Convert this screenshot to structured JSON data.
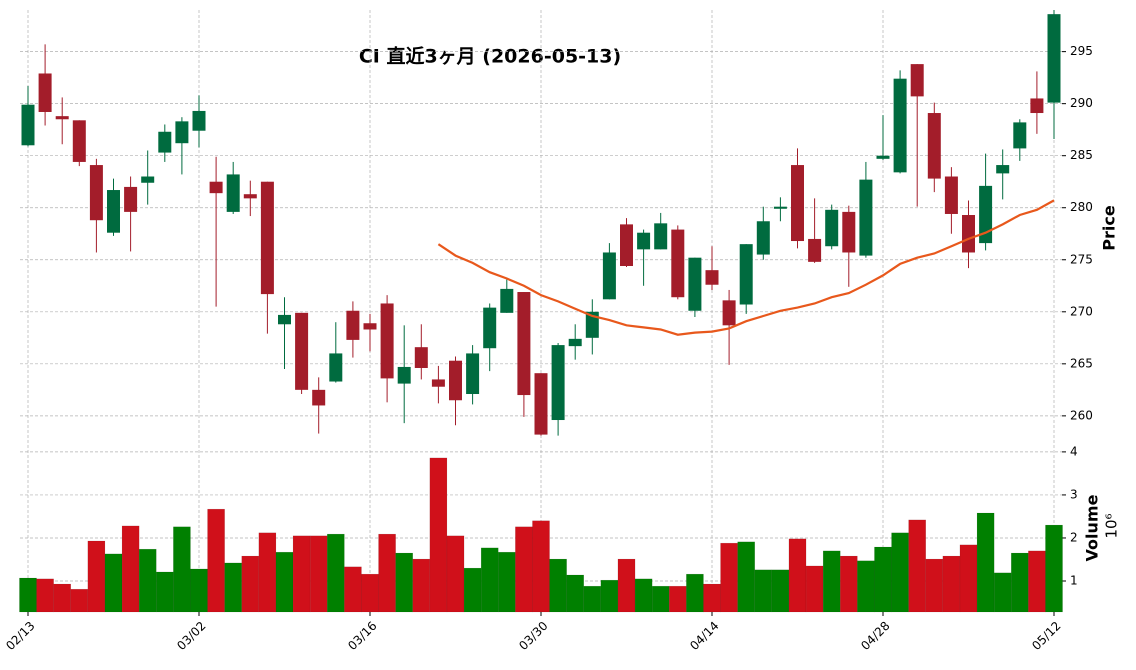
{
  "chart_data": {
    "type": "candlestick",
    "title": "CI  直近3ヶ月  (2026-05-13)",
    "categories": [
      "02/13",
      null,
      null,
      null,
      null,
      null,
      null,
      null,
      null,
      null,
      "03/02",
      null,
      null,
      null,
      null,
      null,
      null,
      null,
      null,
      null,
      "03/16",
      null,
      null,
      null,
      null,
      null,
      null,
      null,
      null,
      null,
      "03/30",
      null,
      null,
      null,
      null,
      null,
      null,
      null,
      null,
      null,
      "04/14",
      null,
      null,
      null,
      null,
      null,
      null,
      null,
      null,
      null,
      "04/28",
      null,
      null,
      null,
      null,
      null,
      null,
      null,
      null,
      null,
      "05/12"
    ],
    "open": [
      286.0,
      292.9,
      288.8,
      288.4,
      284.1,
      277.6,
      282.0,
      282.4,
      285.3,
      286.2,
      287.4,
      282.5,
      279.6,
      281.3,
      282.5,
      268.8,
      269.9,
      262.5,
      263.3,
      270.1,
      268.9,
      270.8,
      263.1,
      266.6,
      263.5,
      265.3,
      262.1,
      266.5,
      269.9,
      271.9,
      264.1,
      259.6,
      266.7,
      267.5,
      271.2,
      278.4,
      276.0,
      276.0,
      277.9,
      270.1,
      274.0,
      271.1,
      270.7,
      275.5,
      279.9,
      284.1,
      277.0,
      276.3,
      279.6,
      275.4,
      284.7,
      283.4,
      293.8,
      289.1,
      283.0,
      279.3,
      276.6,
      283.3,
      285.7,
      290.5,
      290.1
    ],
    "high": [
      291.7,
      295.7,
      290.6,
      288.4,
      284.7,
      282.8,
      283.0,
      285.5,
      288.0,
      288.7,
      290.8,
      284.9,
      284.4,
      282.6,
      282.5,
      271.4,
      269.9,
      263.7,
      269.0,
      271.0,
      269.8,
      271.6,
      268.7,
      268.8,
      264.8,
      265.7,
      266.8,
      270.8,
      273.1,
      271.9,
      264.1,
      267.0,
      268.8,
      271.2,
      276.6,
      279.0,
      277.9,
      279.5,
      278.3,
      275.2,
      276.3,
      272.1,
      276.5,
      280.1,
      281.0,
      285.7,
      280.9,
      280.3,
      280.2,
      284.4,
      288.9,
      293.2,
      293.8,
      290.1,
      283.9,
      280.7,
      285.2,
      285.6,
      288.5,
      293.1,
      299.0
    ],
    "low": [
      285.9,
      287.9,
      286.1,
      284.0,
      275.7,
      277.3,
      275.8,
      280.3,
      284.4,
      283.2,
      285.8,
      270.5,
      279.4,
      279.2,
      267.9,
      264.5,
      262.1,
      258.3,
      263.2,
      265.6,
      266.2,
      261.3,
      259.3,
      263.5,
      261.2,
      259.1,
      261.1,
      264.3,
      269.9,
      259.9,
      258.1,
      258.1,
      265.4,
      265.9,
      271.2,
      274.3,
      272.5,
      276.0,
      271.2,
      269.5,
      272.1,
      264.9,
      269.8,
      275.0,
      278.7,
      276.1,
      274.7,
      276.0,
      272.4,
      275.2,
      284.6,
      283.3,
      280.1,
      281.5,
      277.5,
      274.2,
      275.9,
      280.8,
      284.5,
      287.1,
      286.6
    ],
    "close": [
      289.9,
      289.2,
      288.5,
      284.4,
      278.8,
      281.7,
      279.6,
      283.0,
      287.3,
      288.3,
      289.3,
      281.4,
      283.2,
      280.9,
      271.7,
      269.7,
      262.5,
      261.0,
      266.0,
      267.3,
      268.3,
      263.6,
      264.7,
      264.6,
      262.8,
      261.5,
      266.0,
      270.4,
      272.2,
      262.0,
      258.2,
      266.8,
      267.4,
      270.0,
      275.7,
      274.4,
      277.6,
      278.5,
      271.4,
      275.2,
      272.6,
      268.7,
      276.5,
      278.7,
      280.1,
      276.8,
      274.8,
      279.8,
      275.7,
      282.7,
      285.0,
      292.4,
      290.7,
      282.8,
      279.4,
      275.7,
      282.1,
      284.1,
      288.2,
      289.1,
      298.6
    ],
    "up_color": "#006b3f",
    "down_color": "#a31d2a",
    "ylabel": "Price",
    "ylim": [
      257.2,
      299.0
    ],
    "yticks": [
      260,
      265,
      270,
      275,
      280,
      285,
      290,
      295
    ],
    "grid": true,
    "moving_average": {
      "color": "#e8581c",
      "values": [
        null,
        null,
        null,
        null,
        null,
        null,
        null,
        null,
        null,
        null,
        null,
        null,
        null,
        null,
        null,
        null,
        null,
        null,
        null,
        null,
        null,
        null,
        null,
        null,
        276.5,
        275.4,
        274.7,
        273.8,
        273.2,
        272.5,
        271.6,
        271.0,
        270.3,
        269.6,
        269.2,
        268.7,
        268.5,
        268.3,
        267.8,
        268.0,
        268.1,
        268.4,
        269.1,
        269.6,
        270.1,
        270.4,
        270.8,
        271.4,
        271.8,
        272.6,
        273.5,
        274.6,
        275.2,
        275.6,
        276.3,
        277.0,
        277.6,
        278.4,
        279.3,
        279.8,
        280.7
      ]
    },
    "volume": {
      "ylabel": "Volume",
      "scale_label": "10⁶",
      "values": [
        1.07,
        1.05,
        0.93,
        0.81,
        1.93,
        1.63,
        2.28,
        1.74,
        1.21,
        2.26,
        1.28,
        2.67,
        1.42,
        1.58,
        2.12,
        1.67,
        2.05,
        2.05,
        2.09,
        1.33,
        1.16,
        2.09,
        1.65,
        1.51,
        3.86,
        2.05,
        1.3,
        1.77,
        1.67,
        2.26,
        2.4,
        1.51,
        1.14,
        0.88,
        1.02,
        1.51,
        1.05,
        0.88,
        0.88,
        1.16,
        0.93,
        1.88,
        1.91,
        1.26,
        1.26,
        1.98,
        1.35,
        1.7,
        1.58,
        1.47,
        1.79,
        2.12,
        2.42,
        1.51,
        1.58,
        1.84,
        2.58,
        1.19,
        1.65,
        1.7,
        2.3
      ],
      "up_color": "#008000",
      "down_color": "#d0101a",
      "ylim": [
        0.28,
        4.16
      ],
      "yticks": [
        1,
        2,
        3,
        4
      ]
    }
  }
}
